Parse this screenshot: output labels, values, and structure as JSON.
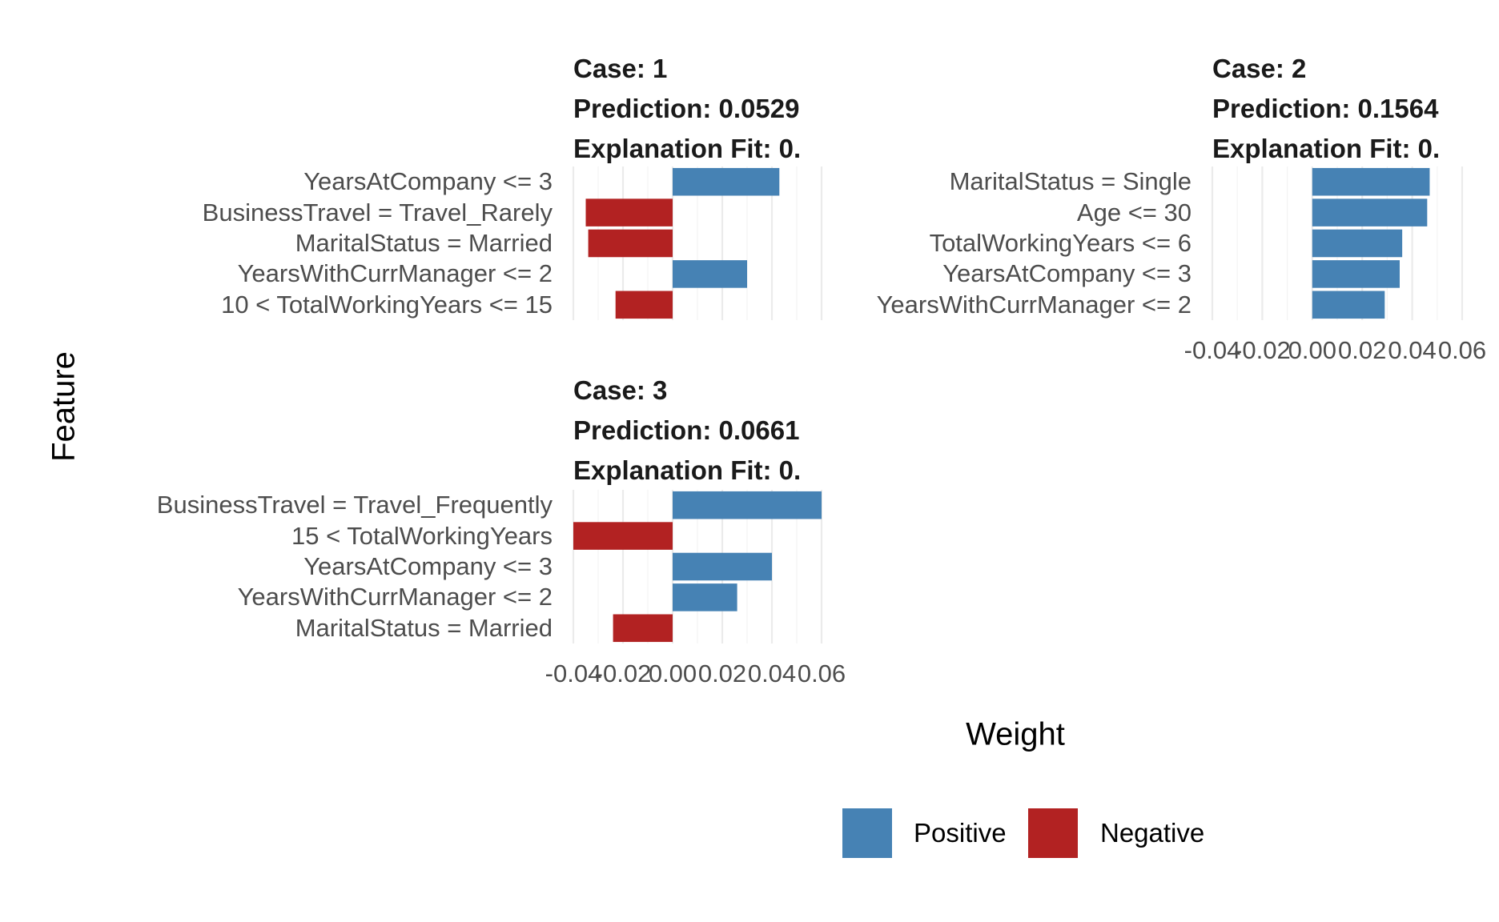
{
  "chart_data": [
    {
      "type": "bar",
      "orientation": "horizontal",
      "case_label": "Case: 1",
      "prediction_label": "Prediction: 0.0529",
      "fit_label": "Explanation Fit: 0.",
      "categories": [
        "YearsAtCompany <= 3",
        "BusinessTravel = Travel_Rarely",
        "MaritalStatus = Married",
        "YearsWithCurrManager <= 2",
        "10 < TotalWorkingYears <= 15"
      ],
      "values": [
        0.043,
        -0.035,
        -0.034,
        0.03,
        -0.023
      ],
      "xlim": [
        -0.04,
        0.06
      ]
    },
    {
      "type": "bar",
      "orientation": "horizontal",
      "case_label": "Case: 2",
      "prediction_label": "Prediction: 0.1564",
      "fit_label": "Explanation Fit: 0.",
      "categories": [
        "MaritalStatus = Single",
        "Age <= 30",
        "TotalWorkingYears <= 6",
        "YearsAtCompany <= 3",
        "YearsWithCurrManager <= 2"
      ],
      "values": [
        0.047,
        0.046,
        0.036,
        0.035,
        0.029
      ],
      "xlim": [
        -0.04,
        0.06
      ]
    },
    {
      "type": "bar",
      "orientation": "horizontal",
      "case_label": "Case: 3",
      "prediction_label": "Prediction: 0.0661",
      "fit_label": "Explanation Fit: 0.",
      "categories": [
        "BusinessTravel = Travel_Frequently",
        "15 < TotalWorkingYears",
        "YearsAtCompany <= 3",
        "YearsWithCurrManager <= 2",
        "MaritalStatus = Married"
      ],
      "values": [
        0.06,
        -0.04,
        0.04,
        0.026,
        -0.024
      ],
      "xlim": [
        -0.04,
        0.06
      ]
    }
  ],
  "x_ticks": [
    "-0.04",
    "-0.02",
    "0.00",
    "0.02",
    "0.04",
    "0.06"
  ],
  "tick_values": [
    -0.04,
    -0.02,
    0.0,
    0.02,
    0.04,
    0.06
  ],
  "xlabel": "Weight",
  "ylabel": "Feature",
  "legend": {
    "position": "bottom",
    "items": [
      {
        "label": "Positive",
        "color": "#4682b4"
      },
      {
        "label": "Negative",
        "color": "#b22222"
      }
    ]
  },
  "grid": true,
  "colors": {
    "positive": "#4682b4",
    "negative": "#b22222",
    "grid": "#ebebeb"
  }
}
